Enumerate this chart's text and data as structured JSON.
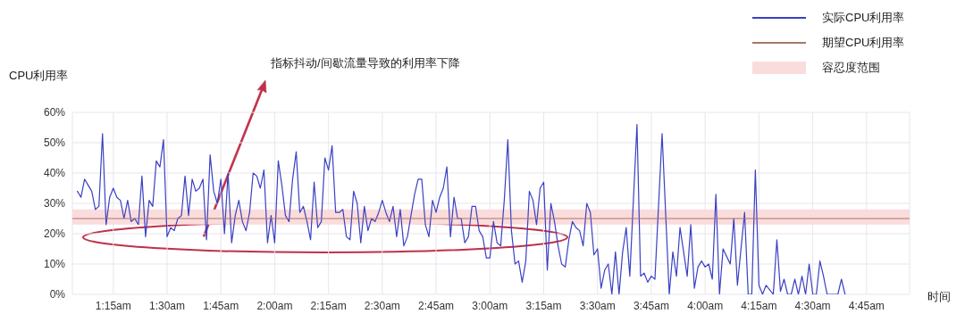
{
  "chart_data": {
    "type": "line",
    "ylabel": "CPU利用率",
    "xlabel": "时间",
    "annotations": [
      "指标抖动/间歇流量导致的利用率下降"
    ],
    "xlim": [
      1.06,
      4.95
    ],
    "xticks": [
      {
        "value": 1.25,
        "label": "1:15am"
      },
      {
        "value": 1.5,
        "label": "1:30am"
      },
      {
        "value": 1.75,
        "label": "1:45am"
      },
      {
        "value": 2,
        "label": "2:00am"
      },
      {
        "value": 2.25,
        "label": "2:15am"
      },
      {
        "value": 2.5,
        "label": "2:30am"
      },
      {
        "value": 2.75,
        "label": "2:45am"
      },
      {
        "value": 3,
        "label": "3:00am"
      },
      {
        "value": 3.25,
        "label": "3:15am"
      },
      {
        "value": 3.5,
        "label": "3:30am"
      },
      {
        "value": 3.75,
        "label": "3:45am"
      },
      {
        "value": 4,
        "label": "4:00am"
      },
      {
        "value": 4.25,
        "label": "4:15am"
      },
      {
        "value": 4.5,
        "label": "4:30am"
      },
      {
        "value": 4.75,
        "label": "4:45am"
      }
    ],
    "ylim": [
      0,
      60
    ],
    "yticks": [
      {
        "value": 0,
        "label": "0%"
      },
      {
        "value": 10,
        "label": "10%"
      },
      {
        "value": 20,
        "label": "20%"
      },
      {
        "value": 30,
        "label": "30%"
      },
      {
        "value": 40,
        "label": "40%"
      },
      {
        "value": 50,
        "label": "50%"
      },
      {
        "value": 60,
        "label": "60%"
      }
    ],
    "grid": true,
    "legend": "top right",
    "bands": [
      {
        "axis": "y",
        "from": 23,
        "to": 28,
        "label": "容忍度范围",
        "color": "#fadcdc"
      }
    ],
    "series": [
      {
        "name": "实际CPU利用率",
        "color": "#3a40c4",
        "x": [
          1.0833,
          1.1,
          1.1167,
          1.1333,
          1.15,
          1.1667,
          1.1833,
          1.2,
          1.2167,
          1.2333,
          1.25,
          1.2667,
          1.2833,
          1.3,
          1.3167,
          1.3333,
          1.35,
          1.3667,
          1.3833,
          1.4,
          1.4167,
          1.4333,
          1.45,
          1.4667,
          1.4833,
          1.5,
          1.5167,
          1.5333,
          1.55,
          1.5667,
          1.5833,
          1.6,
          1.6167,
          1.6333,
          1.65,
          1.6667,
          1.6833,
          1.7,
          1.7167,
          1.7333,
          1.75,
          1.7667,
          1.7833,
          1.8,
          1.8167,
          1.8333,
          1.85,
          1.8667,
          1.8833,
          1.9,
          1.9167,
          1.9333,
          1.95,
          1.9667,
          1.9833,
          2,
          2.0167,
          2.0333,
          2.05,
          2.0667,
          2.0833,
          2.1,
          2.1167,
          2.1333,
          2.15,
          2.1667,
          2.1833,
          2.2,
          2.2167,
          2.2333,
          2.25,
          2.2667,
          2.2833,
          2.3,
          2.3167,
          2.3333,
          2.35,
          2.3667,
          2.3833,
          2.4,
          2.4167,
          2.4333,
          2.45,
          2.4667,
          2.4833,
          2.5,
          2.5167,
          2.5333,
          2.55,
          2.5667,
          2.5833,
          2.6,
          2.6167,
          2.6333,
          2.65,
          2.6667,
          2.6833,
          2.7,
          2.7167,
          2.7333,
          2.75,
          2.7667,
          2.7833,
          2.8,
          2.8167,
          2.8333,
          2.85,
          2.8667,
          2.8833,
          2.9,
          2.9167,
          2.9333,
          2.95,
          2.9667,
          2.9833,
          3,
          3.0167,
          3.0333,
          3.05,
          3.0667,
          3.0833,
          3.1,
          3.1167,
          3.1333,
          3.15,
          3.1667,
          3.1833,
          3.2,
          3.2167,
          3.2333,
          3.25,
          3.2667,
          3.2833,
          3.3,
          3.3167,
          3.3333,
          3.35,
          3.3667,
          3.3833,
          3.4,
          3.4167,
          3.4333,
          3.45,
          3.4667,
          3.4833,
          3.5,
          3.5167,
          3.5333,
          3.55,
          3.5667,
          3.5833,
          3.6,
          3.6167,
          3.6333,
          3.65,
          3.6833,
          3.7,
          3.7167,
          3.7333,
          3.75,
          3.7667,
          3.8,
          3.8333,
          3.85,
          3.8667,
          3.8833,
          3.9167,
          3.9333,
          3.95,
          3.9667,
          3.9833,
          4,
          4.0167,
          4.0333,
          4.05,
          4.0667,
          4.0833,
          4.1167,
          4.1333,
          4.15,
          4.1833,
          4.2,
          4.2167,
          4.2333,
          4.25,
          4.2667,
          4.2833,
          4.3167,
          4.3333,
          4.35,
          4.3667,
          4.3833,
          4.4,
          4.4167,
          4.4333,
          4.45,
          4.4667,
          4.4833,
          4.5,
          4.5167,
          4.5333,
          4.55,
          4.5667,
          4.6167,
          4.6333,
          4.65
        ],
        "values": [
          34,
          32,
          38,
          36,
          34,
          28,
          29,
          53,
          23,
          32,
          35,
          32,
          31,
          25,
          31,
          24,
          25,
          23,
          39,
          19,
          31,
          29,
          44,
          42,
          51,
          19,
          22,
          21,
          25,
          26,
          39,
          26,
          38,
          34,
          35,
          38,
          18,
          46,
          34,
          30,
          38,
          20,
          40,
          17,
          26,
          31,
          24,
          21,
          27,
          40,
          39,
          35,
          41,
          17,
          26,
          17,
          44,
          36,
          26,
          24,
          38,
          47,
          27,
          29,
          24,
          18,
          37,
          22,
          24,
          45,
          41,
          49,
          27,
          27,
          28,
          19,
          18,
          34,
          30,
          17,
          29,
          21,
          25,
          24,
          27,
          31,
          27,
          24,
          29,
          19,
          28,
          16,
          19,
          26,
          33,
          38,
          38,
          23,
          19,
          31,
          27,
          32,
          35,
          42,
          19,
          32,
          25,
          25,
          17,
          19,
          29,
          29,
          21,
          19,
          12,
          12,
          24,
          17,
          16,
          31,
          51,
          21,
          10,
          11,
          4,
          11,
          34,
          31,
          23,
          35,
          37,
          8,
          30,
          24,
          16,
          10,
          9,
          18,
          24,
          22,
          21,
          16,
          30,
          27,
          13,
          15,
          2,
          8,
          10,
          0,
          14,
          0,
          14,
          22,
          6,
          56,
          6,
          7,
          4,
          6,
          5,
          53,
          0,
          14,
          6,
          22,
          6,
          23,
          2,
          9,
          11,
          9,
          10,
          5,
          33,
          0,
          15,
          10,
          25,
          3,
          27,
          0,
          0,
          41,
          3,
          0,
          3,
          0,
          18,
          1,
          5,
          0,
          0,
          5,
          0,
          6,
          0,
          10,
          0,
          0,
          11,
          6,
          0,
          0,
          5,
          0
        ]
      },
      {
        "name": "期望CPU利用率",
        "color": "#a4776a",
        "x": [
          1.06,
          4.95
        ],
        "values": [
          25,
          25
        ]
      }
    ]
  }
}
